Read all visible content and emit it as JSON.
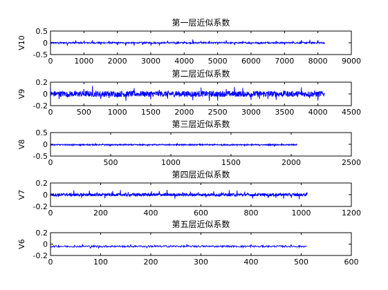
{
  "figure": {
    "background": "#ffffff",
    "line_color": "#0000ff"
  },
  "chart_data": [
    {
      "type": "line",
      "title": "第一层近似系数",
      "xlabel": "",
      "ylabel": "V10",
      "xlim": [
        0,
        9000
      ],
      "ylim": [
        -0.5,
        0.5
      ],
      "xticks": [
        0,
        1000,
        2000,
        3000,
        4000,
        5000,
        6000,
        7000,
        8000,
        9000
      ],
      "yticks": [
        -0.5,
        0,
        0.5
      ],
      "xtick_labels": [
        "0",
        "1000",
        "2000",
        "3000",
        "4000",
        "5000",
        "6000",
        "7000",
        "8000",
        "9000"
      ],
      "ytick_labels": [
        "-0.5",
        "0",
        "0.5"
      ],
      "series": [
        {
          "n_points": 8200,
          "baseline": 0.0,
          "noise": 0.03,
          "spike_amplitude": 0.12,
          "spike_period": 250
        }
      ]
    },
    {
      "type": "line",
      "title": "第二层近似系数",
      "xlabel": "",
      "ylabel": "V9",
      "xlim": [
        0,
        4500
      ],
      "ylim": [
        -0.2,
        0.2
      ],
      "xticks": [
        0,
        500,
        1000,
        1500,
        2000,
        2500,
        3000,
        3500,
        4000,
        4500
      ],
      "yticks": [
        -0.2,
        0,
        0.2
      ],
      "xtick_labels": [
        "0",
        "500",
        "1000",
        "1500",
        "2000",
        "2500",
        "3000",
        "3500",
        "4000",
        "4500"
      ],
      "ytick_labels": [
        "-0.2",
        "0",
        "0.2"
      ],
      "series": [
        {
          "n_points": 4100,
          "baseline": 0.0,
          "noise": 0.05,
          "spike_amplitude": 0.1,
          "spike_period": 125
        }
      ]
    },
    {
      "type": "line",
      "title": "第三层近似系数",
      "xlabel": "",
      "ylabel": "V8",
      "xlim": [
        0,
        2500
      ],
      "ylim": [
        -0.5,
        0.5
      ],
      "xticks": [
        0,
        500,
        1000,
        1500,
        2000,
        2500
      ],
      "yticks": [
        -0.5,
        0,
        0.5
      ],
      "xtick_labels": [
        "0",
        "500",
        "1000",
        "1500",
        "2000",
        "2500"
      ],
      "ytick_labels": [
        "-0.5",
        "0",
        "0.5"
      ],
      "series": [
        {
          "n_points": 2050,
          "baseline": -0.02,
          "noise": 0.02,
          "spike_amplitude": 0.05,
          "spike_period": 62
        }
      ]
    },
    {
      "type": "line",
      "title": "第四层近似系数",
      "xlabel": "",
      "ylabel": "V7",
      "xlim": [
        0,
        1200
      ],
      "ylim": [
        -0.2,
        0.2
      ],
      "xticks": [
        0,
        200,
        400,
        600,
        800,
        1000,
        1200
      ],
      "yticks": [
        -0.2,
        0,
        0.2
      ],
      "xtick_labels": [
        "0",
        "200",
        "400",
        "600",
        "800",
        "1000",
        "1200"
      ],
      "ytick_labels": [
        "-0.2",
        "0",
        "0.2"
      ],
      "series": [
        {
          "n_points": 1025,
          "baseline": 0.0,
          "noise": 0.025,
          "spike_amplitude": 0.06,
          "spike_period": 31
        }
      ]
    },
    {
      "type": "line",
      "title": "第五层近似系数",
      "xlabel": "",
      "ylabel": "V6",
      "xlim": [
        0,
        600
      ],
      "ylim": [
        -0.2,
        0.2
      ],
      "xticks": [
        0,
        100,
        200,
        300,
        400,
        500,
        600
      ],
      "yticks": [
        -0.2,
        0,
        0.2
      ],
      "xtick_labels": [
        "0",
        "100",
        "200",
        "300",
        "400",
        "500",
        "600"
      ],
      "ytick_labels": [
        "-0.2",
        "0",
        "0.2"
      ],
      "series": [
        {
          "n_points": 512,
          "baseline": -0.04,
          "noise": 0.015,
          "spike_amplitude": 0.02,
          "spike_period": 16
        }
      ]
    }
  ]
}
